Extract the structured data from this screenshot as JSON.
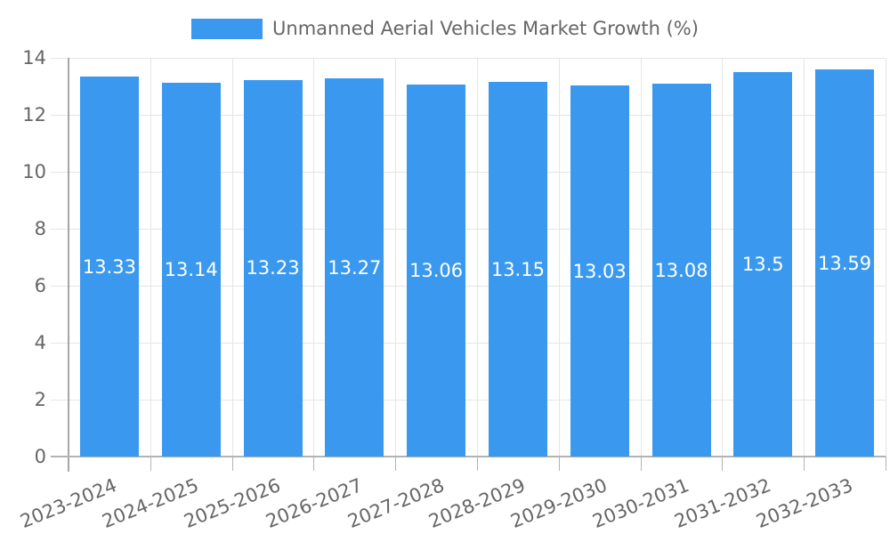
{
  "chart_data": {
    "type": "bar",
    "legend": {
      "label": "Unmanned Aerial Vehicles Market Growth (%)",
      "position": "top"
    },
    "categories": [
      "2023-2024",
      "2024-2025",
      "2025-2026",
      "2026-2027",
      "2027-2028",
      "2028-2029",
      "2029-2030",
      "2030-2031",
      "2031-2032",
      "2032-2033"
    ],
    "values": [
      13.33,
      13.14,
      13.23,
      13.27,
      13.06,
      13.15,
      13.03,
      13.08,
      13.5,
      13.59
    ],
    "value_labels": [
      "13.33",
      "13.14",
      "13.23",
      "13.27",
      "13.06",
      "13.15",
      "13.03",
      "13.08",
      "13.5",
      "13.59"
    ],
    "xlabel": "",
    "ylabel": "",
    "y_ticks": [
      0,
      2,
      4,
      6,
      8,
      10,
      12,
      14
    ],
    "ylim": [
      0,
      14
    ],
    "grid": true,
    "legend_position": "top",
    "colors": {
      "bar": "#3a99ee",
      "text": "#666666",
      "value_label_text": "#ffffff",
      "grid": "#e5e5e5",
      "y_axis": "#a6a6a6",
      "x_baseline": "#b3b3b3",
      "x_tick": "#b3b3b3",
      "background": "#ffffff"
    }
  }
}
